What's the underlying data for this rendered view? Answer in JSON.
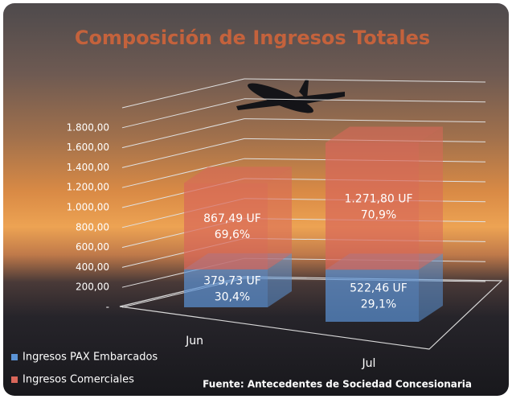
{
  "chart_data": {
    "type": "bar3d_stacked",
    "title": "Composición de Ingresos Totales",
    "categories": [
      "Jun",
      "Jul"
    ],
    "series": [
      {
        "name": "Ingresos PAX Embarcados",
        "color": "#5b93d6",
        "values": [
          379.73,
          522.46
        ],
        "value_labels": [
          "379,73 UF",
          "522,46 UF"
        ],
        "share_labels": [
          "30,4%",
          "29,1%"
        ]
      },
      {
        "name": "Ingresos Comerciales",
        "color": "#d9675a",
        "values": [
          867.49,
          1271.8
        ],
        "value_labels": [
          "867,49 UF",
          "1.271,80 UF"
        ],
        "share_labels": [
          "69,6%",
          "70,9%"
        ]
      }
    ],
    "ylim": [
      0,
      2000
    ],
    "yticks": [
      {
        "value": 0,
        "label": "-"
      },
      {
        "value": 200,
        "label": "200,00"
      },
      {
        "value": 400,
        "label": "400,00"
      },
      {
        "value": 600,
        "label": "600,00"
      },
      {
        "value": 800,
        "label": "800,00"
      },
      {
        "value": 1000,
        "label": "1.000,00"
      },
      {
        "value": 1200,
        "label": "1.200,00"
      },
      {
        "value": 1400,
        "label": "1.400,00"
      },
      {
        "value": 1600,
        "label": "1.600,00"
      },
      {
        "value": 1800,
        "label": "1.800,00"
      }
    ],
    "grid": true,
    "source": "Fuente: Antecedentes de Sociedad Concesionaria"
  }
}
